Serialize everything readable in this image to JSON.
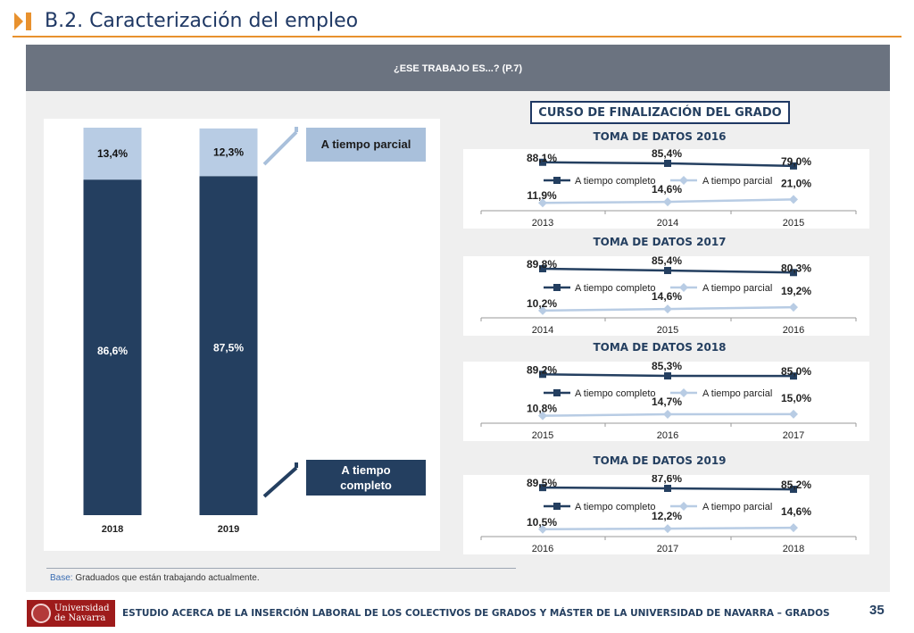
{
  "page": {
    "title": "B.2. Caracterización del empleo",
    "question": "¿ESE TRABAJO ES...? (P.7)",
    "course_label": "CURSO DE FINALIZACIÓN DEL GRADO",
    "base_label": "Base:",
    "base_text": " Graduados que están trabajando actualmente.",
    "footer_text": "ESTUDIO ACERCA DE LA INSERCIÓN LABORAL DE LOS COLECTIVOS DE GRADOS Y MÁSTER DE LA UNIVERSIDAD DE NAVARRA – GRADOS",
    "page_number": "35",
    "logo_line1": "Universidad",
    "logo_line2": "de Navarra",
    "callout_parcial": "A tiempo parcial",
    "callout_completo": "A tiempo completo"
  },
  "colors": {
    "dark_navy": "#243f60",
    "light_blue": "#b8cce4",
    "accent_orange": "#e8912e"
  },
  "chart_data": [
    {
      "type": "bar",
      "stacked": true,
      "percent": true,
      "categories": [
        "2018",
        "2019"
      ],
      "series": [
        {
          "name": "A tiempo completo",
          "values": [
            86.6,
            87.5
          ],
          "labels": [
            "86,6%",
            "87,5%"
          ]
        },
        {
          "name": "A tiempo parcial",
          "values": [
            13.4,
            12.3
          ],
          "labels": [
            "13,4%",
            "12,3%"
          ]
        }
      ],
      "ylim": [
        0,
        100
      ]
    },
    {
      "type": "line",
      "title": "TOMA DE DATOS 2016",
      "categories": [
        "2013",
        "2014",
        "2015"
      ],
      "series": [
        {
          "name": "A tiempo completo",
          "values": [
            88.1,
            85.4,
            79.0
          ],
          "labels": [
            "88,1%",
            "85,4%",
            "79,0%"
          ]
        },
        {
          "name": "A tiempo parcial",
          "values": [
            11.9,
            14.6,
            21.0
          ],
          "labels": [
            "11,9%",
            "14,6%",
            "21,0%"
          ]
        }
      ],
      "ylim": [
        0,
        100
      ]
    },
    {
      "type": "line",
      "title": "TOMA DE DATOS 2017",
      "categories": [
        "2014",
        "2015",
        "2016"
      ],
      "series": [
        {
          "name": "A tiempo completo",
          "values": [
            89.8,
            85.4,
            80.3
          ],
          "labels": [
            "89,8%",
            "85,4%",
            "80,3%"
          ]
        },
        {
          "name": "A tiempo parcial",
          "values": [
            10.2,
            14.6,
            19.2
          ],
          "labels": [
            "10,2%",
            "14,6%",
            "19,2%"
          ]
        }
      ],
      "ylim": [
        0,
        100
      ]
    },
    {
      "type": "line",
      "title": "TOMA DE DATOS 2018",
      "categories": [
        "2015",
        "2016",
        "2017"
      ],
      "series": [
        {
          "name": "A tiempo completo",
          "values": [
            89.2,
            85.3,
            85.0
          ],
          "labels": [
            "89,2%",
            "85,3%",
            "85,0%"
          ]
        },
        {
          "name": "A tiempo parcial",
          "values": [
            10.8,
            14.7,
            15.0
          ],
          "labels": [
            "10,8%",
            "14,7%",
            "15,0%"
          ]
        }
      ],
      "ylim": [
        0,
        100
      ]
    },
    {
      "type": "line",
      "title": "TOMA DE DATOS 2019",
      "categories": [
        "2016",
        "2017",
        "2018"
      ],
      "series": [
        {
          "name": "A tiempo completo",
          "values": [
            89.5,
            87.6,
            85.2
          ],
          "labels": [
            "89,5%",
            "87,6%",
            "85,2%"
          ]
        },
        {
          "name": "A tiempo parcial",
          "values": [
            10.5,
            12.2,
            14.6
          ],
          "labels": [
            "10,5%",
            "12,2%",
            "14,6%"
          ]
        }
      ],
      "ylim": [
        0,
        100
      ]
    }
  ]
}
